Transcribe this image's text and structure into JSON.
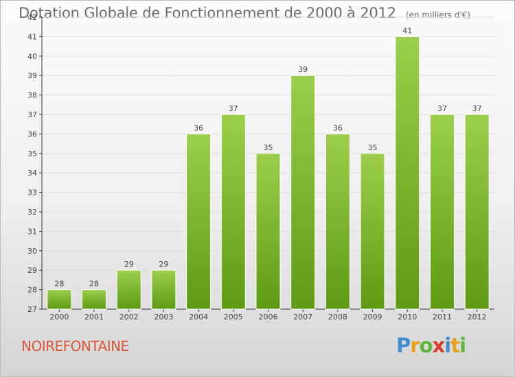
{
  "header": {
    "title": "Dotation Globale de Fonctionnement de 2000 à 2012",
    "unit": "(en milliers d'€)"
  },
  "footer": {
    "commune": "NOIREFONTAINE",
    "logo": "Proxiti"
  },
  "colors": {
    "bar_light": "#9ccf4b",
    "bar_dark": "#5e9a14",
    "grid": "#dcdcdc",
    "axis": "#333333",
    "commune": "#d9553a"
  },
  "chart_data": {
    "type": "bar",
    "title": "Dotation Globale de Fonctionnement de 2000 à 2012",
    "subtitle": "(en milliers d'€)",
    "xlabel": "",
    "ylabel": "",
    "categories": [
      "2000",
      "2001",
      "2002",
      "2003",
      "2004",
      "2005",
      "2006",
      "2007",
      "2008",
      "2009",
      "2010",
      "2011",
      "2012"
    ],
    "values": [
      28,
      28,
      29,
      29,
      36,
      37,
      35,
      39,
      36,
      35,
      41,
      37,
      37
    ],
    "ylim": [
      27,
      42
    ],
    "yticks": [
      27,
      28,
      29,
      30,
      31,
      32,
      33,
      34,
      35,
      36,
      37,
      38,
      39,
      40,
      41,
      42
    ],
    "grid": true,
    "legend": "none"
  }
}
